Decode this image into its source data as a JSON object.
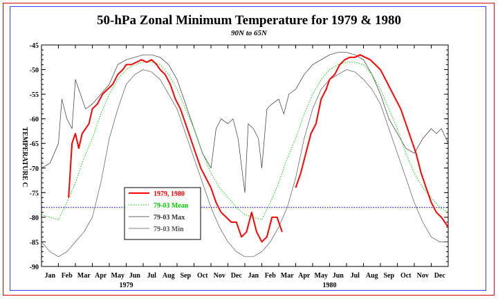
{
  "chart_data": {
    "type": "line",
    "title": "50-hPa Zonal Minimum Temperature for 1979 & 1980",
    "subtitle": "90N to 65N",
    "ylabel": "TEMPERATURE C",
    "xlabel": "",
    "ylim": [
      -90,
      -45
    ],
    "yticks": [
      -45,
      -50,
      -55,
      -60,
      -65,
      -70,
      -75,
      -80,
      -85,
      -90
    ],
    "month_labels": [
      "Jan",
      "Feb",
      "Mar",
      "Apr",
      "May",
      "Jun",
      "Jul",
      "Aug",
      "Sep",
      "Oct",
      "Nov",
      "Dec",
      "Jan",
      "Feb",
      "Mar",
      "Apr",
      "May",
      "Jun",
      "Jul",
      "Aug",
      "Sep",
      "Oct",
      "Nov",
      "Dec"
    ],
    "year_labels": [
      "1979",
      "1980"
    ],
    "x_unit": "month index (0 = start of Jan 1979, 24 = end of Dec 1980)",
    "reference_line": {
      "value": -78,
      "color": "#0000ff",
      "style": "dotted"
    },
    "series": [
      {
        "name": "1979, 1980",
        "color": "#ff0000",
        "x": [
          0,
          0.5,
          1.0,
          1.5,
          1.6,
          1.8,
          2.0,
          2.2,
          2.4,
          2.6,
          2.8,
          3.0,
          3.3,
          3.6,
          3.9,
          4.2,
          4.5,
          4.8,
          5.0,
          5.3,
          5.6,
          5.9,
          6.2,
          6.5,
          6.8,
          7.0,
          7.3,
          7.6,
          7.9,
          8.2,
          8.5,
          8.8,
          9.1,
          9.4,
          9.7,
          10.0,
          10.3,
          10.6,
          10.9,
          11.2,
          11.5,
          11.8,
          12.1,
          12.4,
          12.7,
          13.0,
          13.3,
          13.6,
          13.9,
          14.2,
          14.5,
          14.8,
          15.0,
          15.3,
          15.6,
          15.9,
          16.2,
          16.5,
          16.8,
          17.0,
          17.3,
          17.6,
          17.9,
          18.2,
          18.5,
          18.8,
          19.1,
          19.4,
          19.7,
          20.0,
          20.3,
          20.6,
          20.9,
          21.2,
          21.5,
          21.8,
          22.1,
          22.4,
          22.7,
          23.0,
          23.3,
          23.6,
          24.0
        ],
        "y": [
          null,
          null,
          null,
          null,
          -76,
          -65,
          -63,
          -66,
          -63,
          -62,
          -61,
          -58,
          -57,
          -55,
          -54,
          -53,
          -51,
          -50,
          -49,
          -49,
          -48.5,
          -48,
          -48.5,
          -48,
          -49,
          -50,
          -51,
          -53,
          -56,
          -58,
          -61,
          -64,
          -67,
          -70,
          -72,
          -74,
          -77,
          -79,
          -80,
          -81,
          -81,
          -84,
          -83,
          -79,
          -83,
          -85,
          -84,
          -80,
          -80,
          -83,
          null,
          null,
          -74,
          -71,
          -67,
          -63,
          -61,
          -56,
          -54,
          -52,
          -51,
          -49,
          -48,
          -47.5,
          -47.5,
          -47,
          -47.5,
          -48,
          -49,
          -50,
          -52,
          -54,
          -56,
          -58,
          -61,
          -64,
          -67,
          -71,
          -74,
          -77,
          -79,
          -80,
          -82
        ]
      },
      {
        "name": "79-03 Mean",
        "color": "#00cc00",
        "x": [
          0,
          0.5,
          1.0,
          1.5,
          2.0,
          2.5,
          3.0,
          3.5,
          4.0,
          4.5,
          5.0,
          5.5,
          6.0,
          6.5,
          7.0,
          7.5,
          8.0,
          8.5,
          9.0,
          9.5,
          10.0,
          10.5,
          11.0,
          11.5,
          12.0,
          12.5,
          13.0,
          13.5,
          14.0,
          14.5,
          15.0,
          15.5,
          16.0,
          16.5,
          17.0,
          17.5,
          18.0,
          18.5,
          19.0,
          19.5,
          20.0,
          20.5,
          21.0,
          21.5,
          22.0,
          22.5,
          23.0,
          23.5,
          24.0
        ],
        "y": [
          -79.5,
          -80,
          -80.5,
          -77,
          -73,
          -68,
          -64,
          -59,
          -55,
          -52,
          -50,
          -49,
          -48.5,
          -48.5,
          -49,
          -51,
          -54,
          -58,
          -62,
          -67,
          -71,
          -74,
          -76,
          -78,
          -79.5,
          -80,
          -80.5,
          -77,
          -73,
          -68,
          -64,
          -59,
          -55,
          -52,
          -50,
          -49,
          -48.5,
          -48.5,
          -49,
          -51,
          -54,
          -58,
          -62,
          -67,
          -71,
          -74,
          -76,
          -78,
          -79
        ]
      },
      {
        "name": "79-03 Max",
        "color": "#333333",
        "x": [
          0,
          0.5,
          1.0,
          1.2,
          1.5,
          1.8,
          2.0,
          2.3,
          2.6,
          3.0,
          3.5,
          4.0,
          4.5,
          5.0,
          5.5,
          6.0,
          6.5,
          7.0,
          7.5,
          8.0,
          8.5,
          9.0,
          9.5,
          10.0,
          10.3,
          10.6,
          11.0,
          11.3,
          11.6,
          12.0,
          12.2,
          12.5,
          12.8,
          13.0,
          13.3,
          13.6,
          14.0,
          14.3,
          14.6,
          15.0,
          15.5,
          16.0,
          16.5,
          17.0,
          17.5,
          18.0,
          18.5,
          19.0,
          19.5,
          20.0,
          20.5,
          21.0,
          21.5,
          22.0,
          22.5,
          23.0,
          23.3,
          23.6,
          24.0
        ],
        "y": [
          -70,
          -69,
          -65,
          -56,
          -60,
          -62,
          -52,
          -55,
          -58,
          -57,
          -55,
          -53,
          -49,
          -48,
          -47.5,
          -47,
          -47,
          -47.5,
          -49,
          -52,
          -57,
          -62,
          -67,
          -70,
          -62,
          -60,
          -61,
          -60,
          -64,
          -75,
          -61,
          -62,
          -64,
          -70,
          -58,
          -57,
          -56,
          -59,
          -55,
          -54,
          -51,
          -49,
          -48,
          -47,
          -46.5,
          -46.5,
          -47,
          -48,
          -51,
          -55,
          -60,
          -63,
          -66,
          -67,
          -64,
          -62,
          -63,
          -62,
          -65
        ]
      },
      {
        "name": "79-03 Min",
        "color": "#555555",
        "x": [
          0,
          0.5,
          1.0,
          1.5,
          2.0,
          2.5,
          3.0,
          3.5,
          4.0,
          4.5,
          5.0,
          5.5,
          6.0,
          6.5,
          7.0,
          7.5,
          8.0,
          8.5,
          9.0,
          9.5,
          10.0,
          10.5,
          11.0,
          11.5,
          12.0,
          12.5,
          13.0,
          13.5,
          14.0,
          14.5,
          15.0,
          15.5,
          16.0,
          16.5,
          17.0,
          17.5,
          18.0,
          18.5,
          19.0,
          19.5,
          20.0,
          20.5,
          21.0,
          21.5,
          22.0,
          22.5,
          23.0,
          23.5,
          24.0
        ],
        "y": [
          -85,
          -87,
          -88,
          -87,
          -85,
          -83,
          -80,
          -73,
          -64,
          -58,
          -53,
          -51,
          -50,
          -50.5,
          -52,
          -55,
          -58,
          -63,
          -68,
          -73,
          -78,
          -82,
          -85,
          -87,
          -88,
          -88,
          -87,
          -85,
          -82,
          -78,
          -72,
          -64,
          -58,
          -54,
          -52,
          -51,
          -50,
          -50.5,
          -52,
          -54,
          -57,
          -62,
          -67,
          -72,
          -77,
          -81,
          -84,
          -85,
          -85
        ]
      }
    ],
    "legend": {
      "placement": "lower-left",
      "entries": [
        "1979, 1980",
        "79-03 Mean",
        "79-03 Max",
        "79-03 Min"
      ]
    }
  }
}
